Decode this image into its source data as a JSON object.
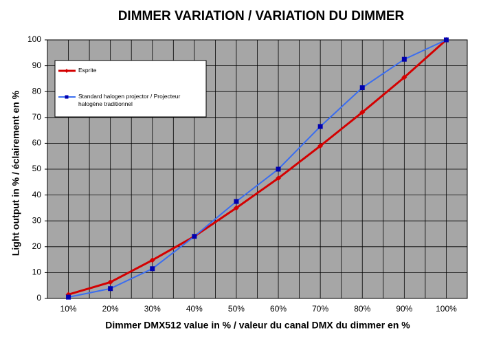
{
  "chart_data": {
    "type": "line",
    "title": "DIMMER VARIATION / VARIATION DU DIMMER",
    "x_label": "Dimmer DMX512 value in % / valeur du canal DMX du dimmer en %",
    "y_label": "Light output in % / éclairement en %",
    "categories": [
      "10%",
      "20%",
      "30%",
      "40%",
      "50%",
      "60%",
      "70%",
      "80%",
      "90%",
      "100%"
    ],
    "series": [
      {
        "name": "Esprite",
        "color": "#d40000",
        "marker": "diamond",
        "values": [
          1.5,
          6.3,
          14.8,
          24,
          35,
          46.5,
          59,
          72,
          85.5,
          100
        ]
      },
      {
        "name": "Standard halogen projector / Projecteur halogène traditionnel",
        "color": "#3a6df0",
        "marker": "square",
        "values": [
          0.5,
          3.8,
          11.5,
          24,
          37.5,
          50,
          66.5,
          81.5,
          92.5,
          100
        ]
      }
    ],
    "ylim": [
      0,
      100
    ],
    "yticks": [
      0,
      10,
      20,
      30,
      40,
      50,
      60,
      70,
      80,
      90,
      100
    ],
    "grid": true
  }
}
